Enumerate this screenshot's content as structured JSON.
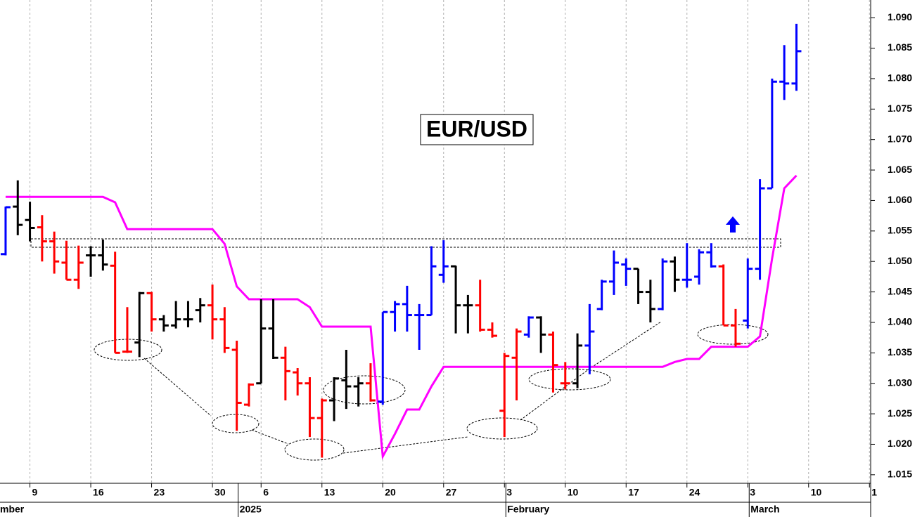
{
  "chart_data": {
    "type": "ohlc",
    "title": "EUR/USD",
    "open": [
      1.0512,
      1.059,
      1.0568,
      1.0556,
      1.0533,
      1.0498,
      1.047,
      1.051,
      1.051,
      1.0493,
      1.0352,
      1.0367,
      1.0448,
      1.0405,
      1.0395,
      1.0405,
      1.042,
      1.0428,
      1.0405,
      1.0355,
      1.0265,
      1.03,
      1.039,
      1.0342,
      1.0318,
      1.03,
      1.0243,
      1.0272,
      1.0305,
      1.0295,
      1.03,
      1.027,
      1.0417,
      1.043,
      1.0412,
      1.0412,
      1.0478,
      1.0492,
      1.0428,
      1.0428,
      1.0388,
      1.0255,
      1.0342,
      1.038,
      1.0408,
      1.038,
      1.03,
      1.03,
      1.0362,
      1.0422,
      1.0467,
      1.0495,
      1.0488,
      1.045,
      1.0422,
      1.05,
      1.047,
      1.0475,
      1.0515,
      1.0492,
      1.0395,
      1.0403,
      1.0488,
      1.062,
      1.0795,
      1.0792
    ],
    "high": [
      1.059,
      1.0633,
      1.0598,
      1.0576,
      1.0549,
      1.0534,
      1.0526,
      1.0525,
      1.0536,
      1.0516,
      1.0425,
      1.045,
      1.045,
      1.0412,
      1.0435,
      1.0435,
      1.044,
      1.0462,
      1.0425,
      1.037,
      1.03,
      1.0438,
      1.0438,
      1.036,
      1.0325,
      1.031,
      1.0275,
      1.031,
      1.0355,
      1.031,
      1.0333,
      1.0417,
      1.0435,
      1.046,
      1.043,
      1.0525,
      1.0535,
      1.0493,
      1.0445,
      1.047,
      1.04,
      1.035,
      1.039,
      1.041,
      1.041,
      1.0385,
      1.0335,
      1.0382,
      1.043,
      1.047,
      1.0518,
      1.0505,
      1.0488,
      1.047,
      1.0505,
      1.0508,
      1.053,
      1.052,
      1.053,
      1.0495,
      1.0422,
      1.0505,
      1.0635,
      1.08,
      1.0855,
      1.089
    ],
    "low": [
      1.051,
      1.0543,
      1.0533,
      1.05,
      1.048,
      1.047,
      1.0455,
      1.0475,
      1.0485,
      1.035,
      1.035,
      1.0343,
      1.0385,
      1.0385,
      1.039,
      1.0392,
      1.04,
      1.0372,
      1.035,
      1.0222,
      1.0262,
      1.03,
      1.034,
      1.0272,
      1.028,
      1.0212,
      1.0178,
      1.0238,
      1.0258,
      1.0262,
      1.027,
      1.0265,
      1.0385,
      1.0385,
      1.0355,
      1.0412,
      1.0465,
      1.0382,
      1.0382,
      1.0385,
      1.0375,
      1.0212,
      1.0272,
      1.0375,
      1.035,
      1.0285,
      1.029,
      1.0292,
      1.0315,
      1.042,
      1.0445,
      1.046,
      1.043,
      1.04,
      1.042,
      1.045,
      1.0457,
      1.0462,
      1.049,
      1.0395,
      1.036,
      1.039,
      1.047,
      1.062,
      1.0765,
      1.078
    ],
    "close": [
      1.0589,
      1.056,
      1.0555,
      1.0533,
      1.05,
      1.047,
      1.0498,
      1.051,
      1.0495,
      1.035,
      1.0352,
      1.0448,
      1.0405,
      1.0395,
      1.0405,
      1.0405,
      1.0428,
      1.0405,
      1.0358,
      1.0268,
      1.0298,
      1.039,
      1.0342,
      1.032,
      1.03,
      1.0243,
      1.0272,
      1.0308,
      1.0295,
      1.03,
      1.0272,
      1.0417,
      1.043,
      1.0412,
      1.0412,
      1.0492,
      1.0492,
      1.0428,
      1.0428,
      1.0388,
      1.0378,
      1.0345,
      1.0385,
      1.0408,
      1.038,
      1.033,
      1.03,
      1.0362,
      1.0385,
      1.0467,
      1.0498,
      1.0488,
      1.045,
      1.0422,
      1.05,
      1.047,
      1.047,
      1.0515,
      1.0492,
      1.0395,
      1.0365,
      1.0488,
      1.062,
      1.0795,
      1.0792,
      1.0845
    ],
    "bar_colors": [
      "#0000ff",
      "#000000",
      "#000000",
      "#ff0000",
      "#ff0000",
      "#ff0000",
      "#ff0000",
      "#000000",
      "#000000",
      "#ff0000",
      "#ff0000",
      "#000000",
      "#ff0000",
      "#000000",
      "#000000",
      "#000000",
      "#000000",
      "#ff0000",
      "#ff0000",
      "#ff0000",
      "#ff0000",
      "#000000",
      "#000000",
      "#ff0000",
      "#ff0000",
      "#ff0000",
      "#ff0000",
      "#000000",
      "#000000",
      "#000000",
      "#ff0000",
      "#0000ff",
      "#0000ff",
      "#0000ff",
      "#0000ff",
      "#0000ff",
      "#0000ff",
      "#000000",
      "#000000",
      "#ff0000",
      "#ff0000",
      "#ff0000",
      "#ff0000",
      "#0000ff",
      "#000000",
      "#ff0000",
      "#ff0000",
      "#000000",
      "#0000ff",
      "#0000ff",
      "#0000ff",
      "#0000ff",
      "#000000",
      "#000000",
      "#0000ff",
      "#000000",
      "#0000ff",
      "#0000ff",
      "#0000ff",
      "#ff0000",
      "#ff0000",
      "#0000ff",
      "#0000ff",
      "#0000ff",
      "#0000ff",
      "#0000ff"
    ],
    "overlay": {
      "type": "line",
      "color": "#ff00ff",
      "values": [
        1.0606,
        1.0606,
        1.0606,
        1.0606,
        1.0606,
        1.0606,
        1.0606,
        1.0606,
        1.0606,
        1.0597,
        1.0553,
        1.0553,
        1.0553,
        1.0553,
        1.0553,
        1.0553,
        1.0553,
        1.0553,
        1.0529,
        1.0459,
        1.0438,
        1.0438,
        1.0438,
        1.0438,
        1.0438,
        1.0425,
        1.0393,
        1.0393,
        1.0393,
        1.0393,
        1.0393,
        1.018,
        1.0217,
        1.0257,
        1.0257,
        1.0295,
        1.0327,
        1.0327,
        1.0327,
        1.0327,
        1.0327,
        1.0327,
        1.0327,
        1.0327,
        1.0327,
        1.0327,
        1.0327,
        1.0327,
        1.0327,
        1.0327,
        1.0327,
        1.0327,
        1.0327,
        1.0327,
        1.0327,
        1.0335,
        1.034,
        1.034,
        1.036,
        1.036,
        1.036,
        1.036,
        1.0377,
        1.0505,
        1.062,
        1.0641
      ]
    },
    "ylim": [
      1.0136,
      1.0929
    ],
    "yticks": [
      {
        "value": 1.015,
        "label": "1.015"
      },
      {
        "value": 1.02,
        "label": "1.020"
      },
      {
        "value": 1.025,
        "label": "1.025"
      },
      {
        "value": 1.03,
        "label": "1.030"
      },
      {
        "value": 1.035,
        "label": "1.035"
      },
      {
        "value": 1.04,
        "label": "1.040"
      },
      {
        "value": 1.045,
        "label": "1.045"
      },
      {
        "value": 1.05,
        "label": "1.050"
      },
      {
        "value": 1.055,
        "label": "1.055"
      },
      {
        "value": 1.06,
        "label": "1.060"
      },
      {
        "value": 1.065,
        "label": "1.065"
      },
      {
        "value": 1.07,
        "label": "1.070"
      },
      {
        "value": 1.075,
        "label": "1.075"
      },
      {
        "value": 1.08,
        "label": "1.080"
      },
      {
        "value": 1.085,
        "label": "1.085"
      },
      {
        "value": 1.09,
        "label": "1.090"
      }
    ],
    "xlim": [
      -0.46,
      71.1
    ],
    "xticks": [
      {
        "value": 2,
        "label": "9"
      },
      {
        "value": 7,
        "label": "16"
      },
      {
        "value": 12,
        "label": "23"
      },
      {
        "value": 17,
        "label": "30"
      },
      {
        "value": 21,
        "label": "6"
      },
      {
        "value": 26,
        "label": "13"
      },
      {
        "value": 31,
        "label": "20"
      },
      {
        "value": 36,
        "label": "27"
      },
      {
        "value": 41,
        "label": "3"
      },
      {
        "value": 46,
        "label": "10"
      },
      {
        "value": 51,
        "label": "17"
      },
      {
        "value": 56,
        "label": "24"
      },
      {
        "value": 61,
        "label": "3"
      },
      {
        "value": 66,
        "label": "10"
      },
      {
        "value": 71,
        "label": "1"
      }
    ],
    "month_labels": [
      {
        "value": 19,
        "label": "2025"
      },
      {
        "value": 41,
        "label": "February"
      },
      {
        "value": 61,
        "label": "March"
      }
    ],
    "edge_label": "mber",
    "grid": true
  }
}
